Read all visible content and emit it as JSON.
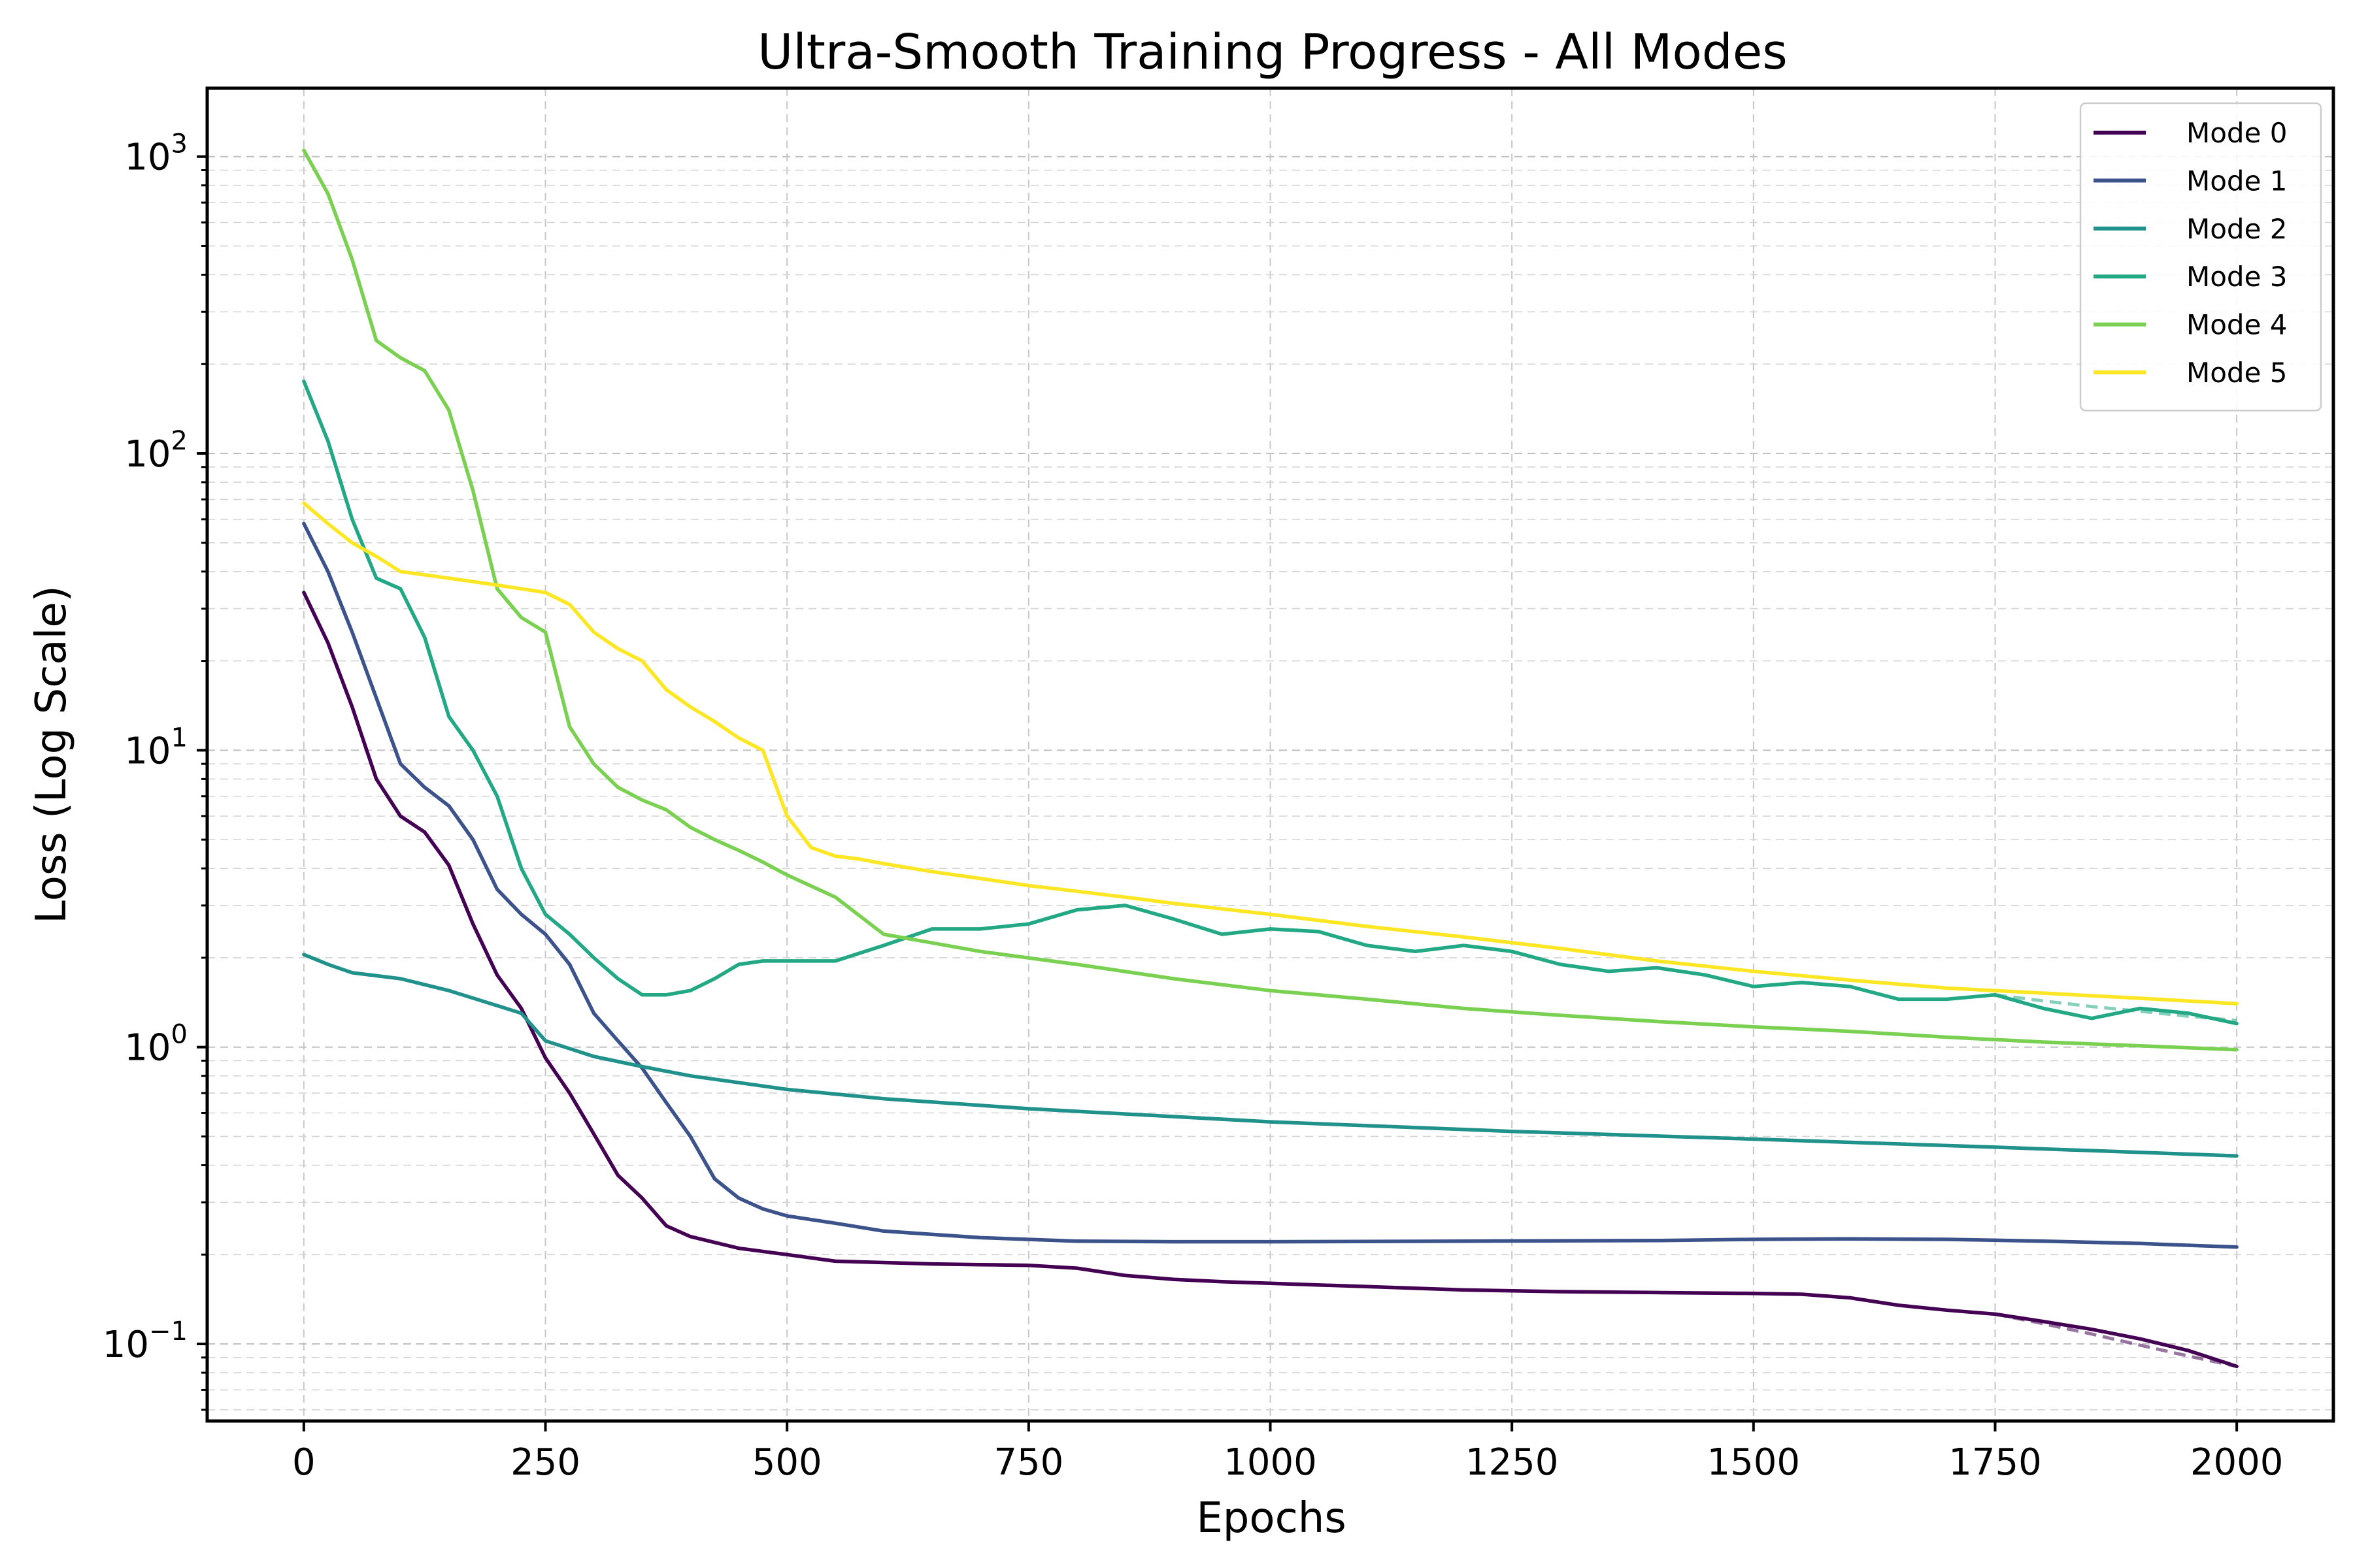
{
  "chart_data": {
    "type": "line",
    "title": "Ultra-Smooth Training Progress - All Modes",
    "xlabel": "Epochs",
    "ylabel": "Loss (Log Scale)",
    "xlim": [
      -100,
      2100
    ],
    "ylim": [
      0.055,
      1700
    ],
    "yscale": "log",
    "x_ticks": [
      0,
      250,
      500,
      750,
      1000,
      1250,
      1500,
      1750,
      2000
    ],
    "x_tick_labels": [
      "0",
      "250",
      "500",
      "750",
      "1000",
      "1250",
      "1500",
      "1750",
      "2000"
    ],
    "y_ticks": [
      0.1,
      1,
      10,
      100,
      1000
    ],
    "y_tick_labels": [
      {
        "base": "10",
        "exp": "−1"
      },
      {
        "base": "10",
        "exp": "0"
      },
      {
        "base": "10",
        "exp": "1"
      },
      {
        "base": "10",
        "exp": "2"
      },
      {
        "base": "10",
        "exp": "3"
      }
    ],
    "grid": true,
    "legend_position": "top-right",
    "series": [
      {
        "name": "Mode 0",
        "color": "#440154",
        "x": [
          0,
          25,
          50,
          75,
          100,
          125,
          150,
          175,
          200,
          225,
          250,
          275,
          300,
          325,
          350,
          375,
          400,
          450,
          500,
          550,
          600,
          650,
          700,
          750,
          800,
          850,
          900,
          950,
          1000,
          1100,
          1200,
          1300,
          1400,
          1500,
          1550,
          1600,
          1650,
          1700,
          1750,
          1800,
          1850,
          1900,
          1950,
          2000
        ],
        "y": [
          34,
          23,
          14,
          8,
          6,
          5.3,
          4.1,
          2.6,
          1.75,
          1.35,
          0.92,
          0.7,
          0.51,
          0.37,
          0.31,
          0.25,
          0.23,
          0.21,
          0.2,
          0.19,
          0.188,
          0.186,
          0.185,
          0.184,
          0.18,
          0.17,
          0.165,
          0.162,
          0.16,
          0.156,
          0.152,
          0.15,
          0.149,
          0.148,
          0.147,
          0.143,
          0.135,
          0.13,
          0.126,
          0.119,
          0.112,
          0.104,
          0.095,
          0.084
        ],
        "trend": {
          "x": [
            1750,
            1800,
            1850,
            1900,
            1950,
            2000
          ],
          "y": [
            0.126,
            0.117,
            0.108,
            0.099,
            0.091,
            0.084
          ]
        }
      },
      {
        "name": "Mode 1",
        "color": "#3b528b",
        "x": [
          0,
          25,
          50,
          75,
          100,
          125,
          150,
          175,
          200,
          225,
          250,
          275,
          300,
          325,
          350,
          375,
          400,
          425,
          450,
          475,
          500,
          550,
          600,
          700,
          800,
          900,
          1000,
          1200,
          1400,
          1500,
          1600,
          1700,
          1800,
          1900,
          2000
        ],
        "y": [
          58,
          40,
          25,
          15,
          9,
          7.5,
          6.5,
          5,
          3.4,
          2.8,
          2.4,
          1.9,
          1.3,
          1.05,
          0.85,
          0.65,
          0.5,
          0.36,
          0.31,
          0.285,
          0.27,
          0.255,
          0.24,
          0.228,
          0.222,
          0.221,
          0.221,
          0.222,
          0.223,
          0.225,
          0.226,
          0.225,
          0.222,
          0.218,
          0.212
        ]
      },
      {
        "name": "Mode 2",
        "color": "#21918c",
        "x": [
          0,
          25,
          50,
          100,
          150,
          200,
          225,
          250,
          300,
          350,
          400,
          500,
          600,
          750,
          1000,
          1250,
          1500,
          1750,
          2000
        ],
        "y": [
          2.05,
          1.9,
          1.78,
          1.7,
          1.55,
          1.38,
          1.3,
          1.05,
          0.93,
          0.86,
          0.8,
          0.72,
          0.67,
          0.62,
          0.56,
          0.52,
          0.49,
          0.46,
          0.43
        ]
      },
      {
        "name": "Mode 3",
        "color": "#22a884",
        "x": [
          0,
          25,
          50,
          75,
          100,
          125,
          150,
          175,
          200,
          225,
          250,
          275,
          300,
          325,
          350,
          375,
          400,
          425,
          450,
          475,
          500,
          550,
          600,
          650,
          700,
          750,
          800,
          850,
          900,
          950,
          1000,
          1050,
          1100,
          1150,
          1200,
          1250,
          1300,
          1350,
          1400,
          1450,
          1500,
          1550,
          1600,
          1650,
          1700,
          1750,
          1800,
          1850,
          1900,
          1950,
          2000
        ],
        "y": [
          175,
          110,
          60,
          38,
          35,
          24,
          13,
          10,
          7,
          4,
          2.8,
          2.4,
          2,
          1.7,
          1.5,
          1.5,
          1.55,
          1.7,
          1.9,
          1.95,
          1.95,
          1.95,
          2.2,
          2.5,
          2.5,
          2.6,
          2.9,
          3,
          2.7,
          2.4,
          2.5,
          2.45,
          2.2,
          2.1,
          2.2,
          2.1,
          1.9,
          1.8,
          1.85,
          1.75,
          1.6,
          1.65,
          1.6,
          1.45,
          1.45,
          1.5,
          1.35,
          1.25,
          1.35,
          1.3,
          1.2
        ],
        "trend": {
          "x": [
            1750,
            1800,
            1850,
            1900,
            1950,
            2000
          ],
          "y": [
            1.5,
            1.43,
            1.37,
            1.32,
            1.27,
            1.23
          ]
        }
      },
      {
        "name": "Mode 4",
        "color": "#7ad151",
        "x": [
          0,
          25,
          50,
          75,
          100,
          125,
          150,
          175,
          200,
          225,
          250,
          275,
          300,
          325,
          350,
          375,
          400,
          425,
          450,
          475,
          500,
          550,
          600,
          700,
          800,
          900,
          1000,
          1100,
          1200,
          1300,
          1400,
          1500,
          1600,
          1700,
          1800,
          1900,
          2000
        ],
        "y": [
          1050,
          750,
          450,
          240,
          210,
          190,
          140,
          75,
          35,
          28,
          25,
          12,
          9,
          7.5,
          6.8,
          6.3,
          5.5,
          5,
          4.6,
          4.2,
          3.8,
          3.2,
          2.4,
          2.1,
          1.9,
          1.7,
          1.55,
          1.45,
          1.35,
          1.28,
          1.22,
          1.17,
          1.13,
          1.08,
          1.04,
          1.01,
          0.98
        ]
      },
      {
        "name": "Mode 5",
        "color": "#fde725",
        "x": [
          0,
          25,
          50,
          75,
          100,
          125,
          150,
          175,
          200,
          225,
          250,
          275,
          300,
          325,
          350,
          375,
          400,
          425,
          450,
          475,
          500,
          525,
          550,
          575,
          600,
          650,
          700,
          750,
          800,
          850,
          900,
          1000,
          1100,
          1200,
          1300,
          1400,
          1500,
          1600,
          1700,
          1800,
          1900,
          2000
        ],
        "y": [
          68,
          58,
          50,
          45,
          40,
          39,
          38,
          37,
          36,
          35,
          34,
          31,
          25,
          22,
          20,
          16,
          14,
          12.5,
          11,
          10,
          6,
          4.7,
          4.4,
          4.3,
          4.15,
          3.9,
          3.7,
          3.5,
          3.35,
          3.2,
          3.05,
          2.8,
          2.55,
          2.35,
          2.15,
          1.95,
          1.8,
          1.68,
          1.58,
          1.52,
          1.46,
          1.4
        ]
      }
    ]
  }
}
